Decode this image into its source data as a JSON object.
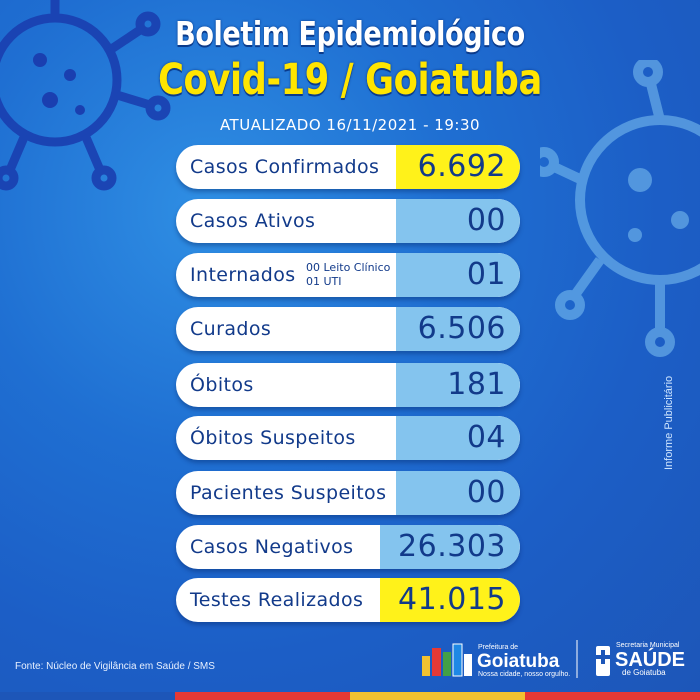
{
  "header": {
    "title_line1": "Boletim Epidemiológico",
    "title_line2": "Covid-19 / Goiatuba",
    "updated": "ATUALIZADO 16/11/2021 - 19:30"
  },
  "rows": [
    {
      "label": "Casos Confirmados",
      "value": "6.692",
      "highlight": true
    },
    {
      "label": "Casos Ativos",
      "value": "00"
    },
    {
      "label": "Internados",
      "value": "01",
      "sub": [
        "00 Leito Clínico",
        "01  UTI"
      ]
    },
    {
      "label": "Curados",
      "value": "6.506"
    },
    {
      "label": "Óbitos",
      "value": "181"
    },
    {
      "label": "Óbitos Suspeitos",
      "value": "04"
    },
    {
      "label": "Pacientes Suspeitos",
      "value": "00"
    },
    {
      "label": "Casos Negativos",
      "value": "26.303"
    },
    {
      "label": "Testes Realizados",
      "value": "41.015",
      "highlight": true
    }
  ],
  "footer": {
    "source": "Fonte: Núcleo de Vigilância em Saúde / SMS",
    "vertical_note": "Informe Publicitário",
    "prefeitura": {
      "top": "Prefeitura de",
      "name": "Goiatuba",
      "slogan": "Nossa cidade, nosso orgulho."
    },
    "saude": {
      "top": "Secretaria Municipal",
      "name": "SAÚDE",
      "bottom": "de Goiatuba"
    }
  },
  "colors": {
    "highlight": "#fff21a",
    "value_bg": "#84c4ee",
    "text": "#123a8a",
    "title_yellow": "#ffe500"
  }
}
